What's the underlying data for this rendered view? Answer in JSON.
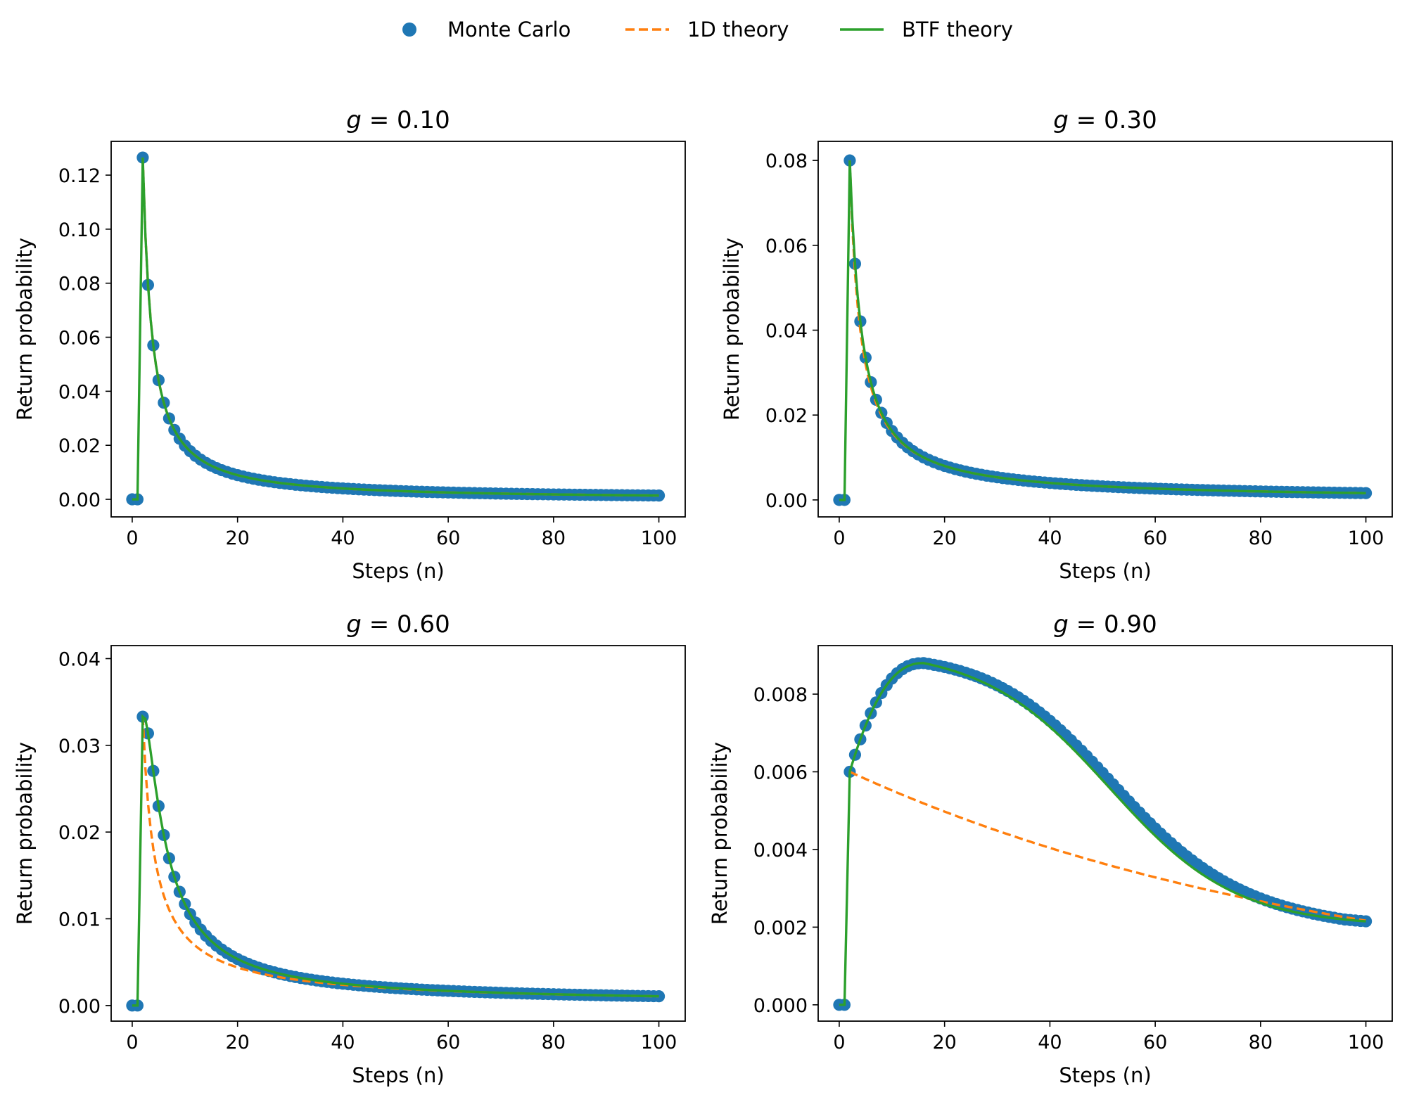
{
  "figure": {
    "legend": [
      {
        "label": "Monte Carlo",
        "marker": "circle",
        "color": "#1f77b4"
      },
      {
        "label": "1D theory",
        "marker": "dashed-line",
        "color": "#ff7f0e"
      },
      {
        "label": "BTF theory",
        "marker": "solid-line",
        "color": "#2ca02c"
      }
    ]
  },
  "chart_data": [
    {
      "type": "line",
      "title_prefix": "g",
      "title_value": "0.10",
      "xlabel": "Steps (n)",
      "ylabel": "Return probability",
      "xlim": [
        -4,
        105
      ],
      "ylim": [
        -0.0065,
        0.1325
      ],
      "xticks": [
        0,
        20,
        40,
        60,
        80,
        100
      ],
      "xtick_labels": [
        "0",
        "20",
        "40",
        "60",
        "80",
        "100"
      ],
      "yticks": [
        0,
        0.02,
        0.04,
        0.06,
        0.08,
        0.1,
        0.12
      ],
      "ytick_labels": [
        "0.00",
        "0.02",
        "0.04",
        "0.06",
        "0.08",
        "0.10",
        "0.12"
      ],
      "x_range": [
        0,
        100
      ],
      "series": [
        {
          "name": "Monte Carlo",
          "style": "markers",
          "model": "monte_carlo",
          "params": {
            "A": 0.1265,
            "p": 1.15,
            "n0": 2
          }
        },
        {
          "name": "1D theory",
          "style": "dashed",
          "model": "power_decay",
          "params": {
            "A": 0.1265,
            "p": 1.15,
            "n0": 2
          }
        },
        {
          "name": "BTF theory",
          "style": "solid",
          "model": "power_decay",
          "params": {
            "A": 0.1265,
            "p": 1.15,
            "n0": 2
          }
        }
      ]
    },
    {
      "type": "line",
      "title_prefix": "g",
      "title_value": "0.30",
      "xlabel": "Steps (n)",
      "ylabel": "Return probability",
      "xlim": [
        -4,
        105
      ],
      "ylim": [
        -0.004,
        0.0845
      ],
      "xticks": [
        0,
        20,
        40,
        60,
        80,
        100
      ],
      "xtick_labels": [
        "0",
        "20",
        "40",
        "60",
        "80",
        "100"
      ],
      "yticks": [
        0,
        0.02,
        0.04,
        0.06,
        0.08
      ],
      "ytick_labels": [
        "0.00",
        "0.02",
        "0.04",
        "0.06",
        "0.08"
      ],
      "x_range": [
        0,
        100
      ],
      "series": [
        {
          "name": "Monte Carlo",
          "style": "markers",
          "model": "monte_carlo",
          "params": {
            "A": 0.08,
            "p": 1.0,
            "n0": 2,
            "T": 4
          }
        },
        {
          "name": "1D theory",
          "style": "dashed",
          "model": "power_decay",
          "params": {
            "A": 0.08,
            "p": 1.0,
            "n0": 2
          }
        },
        {
          "name": "BTF theory",
          "style": "solid",
          "model": "rise_decay",
          "params": {
            "A": 0.08,
            "p": 1.0,
            "n0": 2,
            "T": 4
          }
        }
      ]
    },
    {
      "type": "line",
      "title_prefix": "g",
      "title_value": "0.60",
      "xlabel": "Steps (n)",
      "ylabel": "Return probability",
      "xlim": [
        -4,
        105
      ],
      "ylim": [
        -0.0018,
        0.0415
      ],
      "xticks": [
        0,
        20,
        40,
        60,
        80,
        100
      ],
      "xtick_labels": [
        "0",
        "20",
        "40",
        "60",
        "80",
        "100"
      ],
      "yticks": [
        0,
        0.01,
        0.02,
        0.03,
        0.04
      ],
      "ytick_labels": [
        "0.00",
        "0.01",
        "0.02",
        "0.03",
        "0.04"
      ],
      "x_range": [
        0,
        100
      ],
      "series": [
        {
          "name": "Monte Carlo",
          "style": "markers",
          "model": "monte_carlo",
          "params": {
            "A": 0.0333,
            "p": 0.88,
            "n0": 2,
            "T": 14
          }
        },
        {
          "name": "1D theory",
          "style": "dashed",
          "model": "power_decay",
          "params": {
            "A": 0.0333,
            "p": 0.88,
            "n0": 2
          }
        },
        {
          "name": "BTF theory",
          "style": "solid",
          "model": "rise_decay",
          "params": {
            "A": 0.0333,
            "p": 0.88,
            "n0": 2,
            "T": 14
          }
        }
      ]
    },
    {
      "type": "line",
      "title_prefix": "g",
      "title_value": "0.90",
      "xlabel": "Steps (n)",
      "ylabel": "Return probability",
      "xlim": [
        -4,
        105
      ],
      "ylim": [
        -0.00042,
        0.00925
      ],
      "xticks": [
        0,
        20,
        40,
        60,
        80,
        100
      ],
      "xtick_labels": [
        "0",
        "20",
        "40",
        "60",
        "80",
        "100"
      ],
      "yticks": [
        0,
        0.002,
        0.004,
        0.006,
        0.008
      ],
      "ytick_labels": [
        "0.000",
        "0.002",
        "0.004",
        "0.006",
        "0.008"
      ],
      "x_range": [
        0,
        100
      ],
      "series": [
        {
          "name": "Monte Carlo",
          "style": "markers",
          "model": "bump_tail",
          "params": {
            "offset": 0.00012
          }
        },
        {
          "name": "1D theory",
          "style": "dashed",
          "model": "exp_decay",
          "params": {
            "A": 0.006,
            "k": 0.0104,
            "n0": 2
          }
        },
        {
          "name": "BTF theory",
          "style": "solid",
          "model": "bump_tail",
          "params": {
            "offset": 0
          }
        }
      ]
    }
  ]
}
